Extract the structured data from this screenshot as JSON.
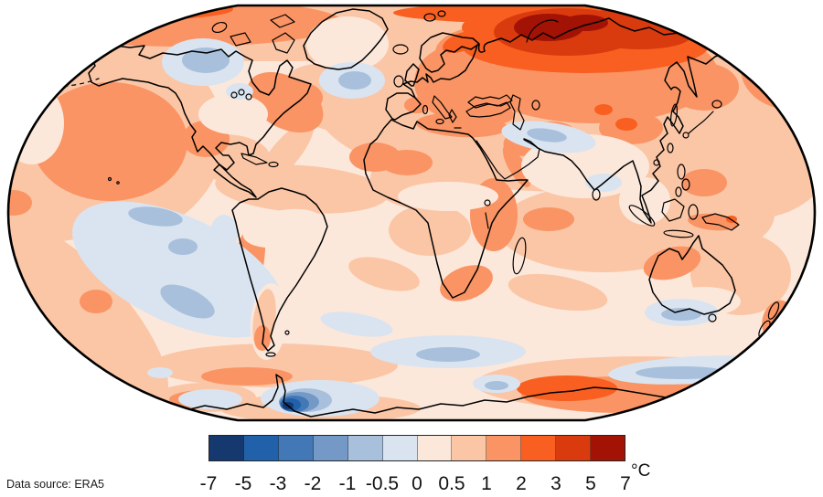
{
  "map": {
    "kind": "global-temperature-anomaly-map",
    "projection": "Robinson",
    "outside_background": "#ffffff",
    "coastline_color": "#000000",
    "outline_color": "#000000",
    "base_fill_index": 7
  },
  "colorbar": {
    "unit_label": "°C",
    "tick_labels": [
      "-7",
      "-5",
      "-3",
      "-2",
      "-1",
      "-0.5",
      "0",
      "0.5",
      "1",
      "2",
      "3",
      "5",
      "7"
    ],
    "segment_colors": [
      "#15386f",
      "#2161a9",
      "#4278b6",
      "#7499c7",
      "#a8c0dc",
      "#d9e4f0",
      "#fce8db",
      "#fbc6a6",
      "#fa9464",
      "#f85f20",
      "#d93b0e",
      "#a21205"
    ]
  },
  "footer": {
    "data_source_label": "Data source: ERA5"
  }
}
